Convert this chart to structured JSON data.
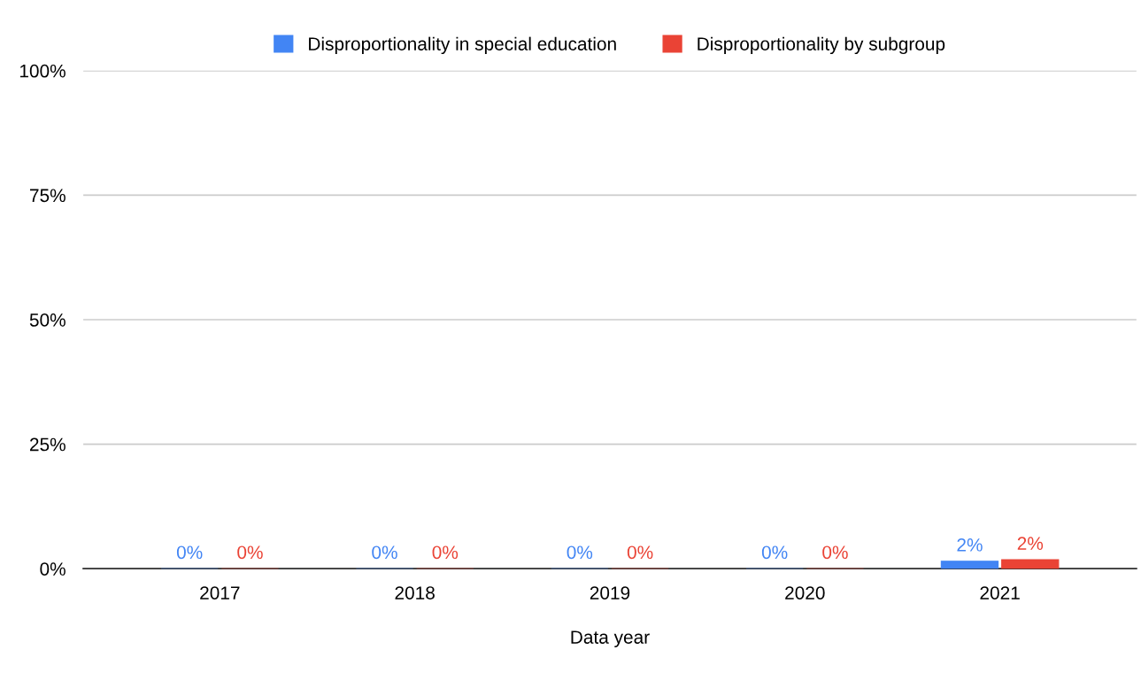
{
  "chart_data": {
    "type": "bar",
    "xlabel": "Data year",
    "categories": [
      "2017",
      "2018",
      "2019",
      "2020",
      "2021"
    ],
    "series": [
      {
        "name": "Disproportionality in special education",
        "color": "#4285f4",
        "values": [
          0,
          0,
          0,
          0,
          1.5
        ],
        "value_labels": [
          "0%",
          "0%",
          "0%",
          "0%",
          "2%"
        ]
      },
      {
        "name": "Disproportionality by subgroup",
        "color": "#ea4335",
        "values": [
          0,
          0,
          0,
          0,
          1.8
        ],
        "value_labels": [
          "0%",
          "0%",
          "0%",
          "0%",
          "2%"
        ]
      }
    ],
    "ylim": [
      0,
      100
    ],
    "yticks": [
      {
        "value": 0,
        "label": "0%"
      },
      {
        "value": 25,
        "label": "25%"
      },
      {
        "value": 50,
        "label": "50%"
      },
      {
        "value": 75,
        "label": "75%"
      },
      {
        "value": 100,
        "label": "100%"
      }
    ],
    "grid": "y",
    "legend": "top"
  }
}
